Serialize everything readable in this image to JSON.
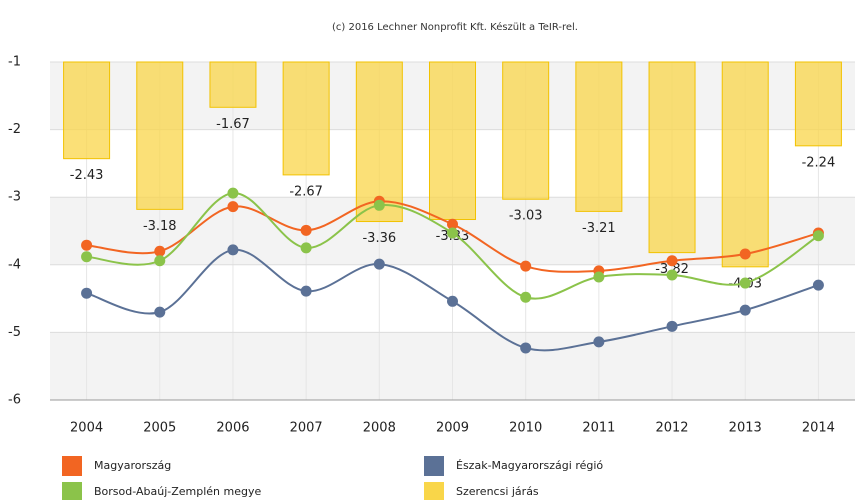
{
  "chart_data": {
    "type": "line",
    "credit": "(c) 2016 Lechner Nonprofit Kft. Készült a TeIR-rel.",
    "categories": [
      "2004",
      "2005",
      "2006",
      "2007",
      "2008",
      "2009",
      "2010",
      "2011",
      "2012",
      "2013",
      "2014"
    ],
    "ylim": [
      -6,
      -1
    ],
    "yticks": [
      -1,
      -2,
      -3,
      -4,
      -5,
      -6
    ],
    "series": [
      {
        "name": "Magyarország",
        "color": "#f26522",
        "kind": "line",
        "values": [
          -3.71,
          -3.8,
          -3.14,
          -3.49,
          -3.06,
          -3.4,
          -4.02,
          -4.09,
          -3.94,
          -3.84,
          -3.53
        ]
      },
      {
        "name": "Észak-Magyarországi régió",
        "color": "#5b7196",
        "kind": "line",
        "values": [
          -4.42,
          -4.7,
          -3.78,
          -4.39,
          -3.99,
          -4.54,
          -5.23,
          -5.14,
          -4.91,
          -4.67,
          -4.3
        ]
      },
      {
        "name": "Borsod-Abaúj-Zemplén megye",
        "color": "#8bc34a",
        "kind": "line",
        "values": [
          -3.88,
          -3.94,
          -2.94,
          -3.75,
          -3.12,
          -3.53,
          -4.48,
          -4.18,
          -4.15,
          -4.27,
          -3.57
        ]
      },
      {
        "name": "Szerencsi járás",
        "color": "#f9d649",
        "kind": "bar",
        "values": [
          -2.43,
          -3.18,
          -1.67,
          -2.67,
          -3.36,
          -3.33,
          -3.03,
          -3.21,
          -3.82,
          -4.03,
          -2.24
        ]
      }
    ]
  }
}
